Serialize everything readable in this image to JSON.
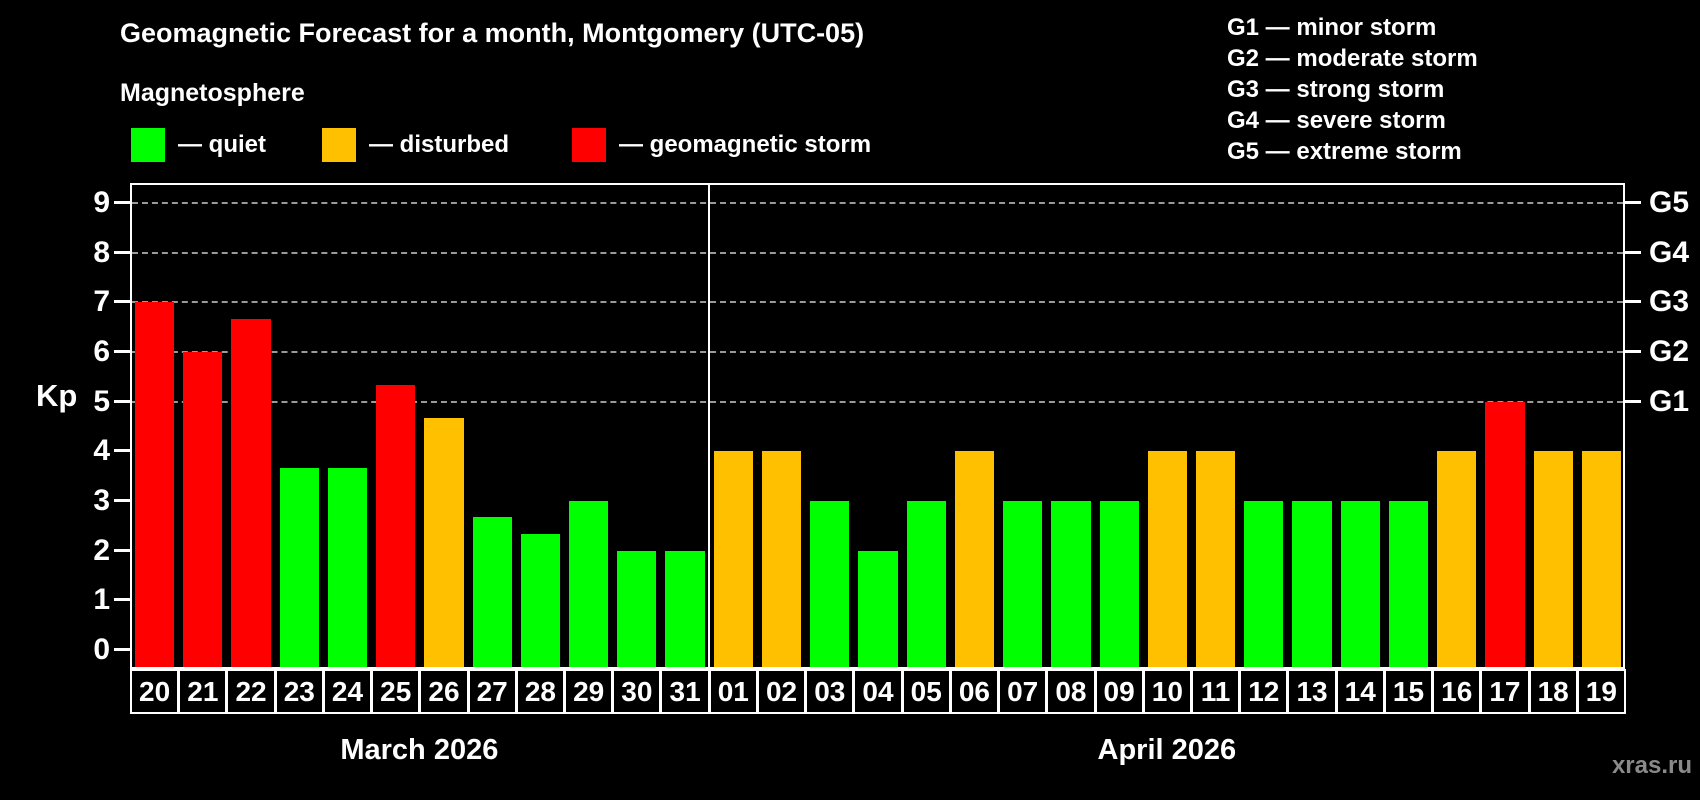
{
  "title": "Geomagnetic Forecast for a month, Montgomery (UTC-05)",
  "subtitle": "Magnetosphere",
  "watermark": "xras.ru",
  "legend": {
    "items": [
      {
        "label": "— quiet",
        "status": "quiet"
      },
      {
        "label": "— disturbed",
        "status": "disturbed"
      },
      {
        "label": "— geomagnetic storm",
        "status": "storm"
      }
    ]
  },
  "g_scale_legend": [
    "G1 — minor storm",
    "G2 — moderate storm",
    "G3 — strong storm",
    "G4 — severe storm",
    "G5 — extreme storm"
  ],
  "chart_data": {
    "type": "bar",
    "title": "Geomagnetic Forecast for a month, Montgomery (UTC-05)",
    "ylabel": "Kp",
    "ylim": [
      -0.4,
      9.4
    ],
    "y_ticks": [
      0,
      1,
      2,
      3,
      4,
      5,
      6,
      7,
      8,
      9
    ],
    "grid_levels": [
      5,
      6,
      7,
      8,
      9
    ],
    "grid": "dashed, levels G1-G5 only",
    "legend_position": "top-left",
    "right_axis": [
      {
        "kp": 5,
        "label": "G1"
      },
      {
        "kp": 6,
        "label": "G2"
      },
      {
        "kp": 7,
        "label": "G3"
      },
      {
        "kp": 8,
        "label": "G4"
      },
      {
        "kp": 9,
        "label": "G5"
      }
    ],
    "colors": {
      "quiet": "#00ff00",
      "disturbed": "#ffc000",
      "storm": "#ff0000"
    },
    "months": [
      {
        "label": "March 2026",
        "days": [
          {
            "day": "20",
            "kp": 7.0,
            "status": "storm"
          },
          {
            "day": "21",
            "kp": 6.0,
            "status": "storm"
          },
          {
            "day": "22",
            "kp": 6.67,
            "status": "storm"
          },
          {
            "day": "23",
            "kp": 3.67,
            "status": "quiet"
          },
          {
            "day": "24",
            "kp": 3.67,
            "status": "quiet"
          },
          {
            "day": "25",
            "kp": 5.33,
            "status": "storm"
          },
          {
            "day": "26",
            "kp": 4.67,
            "status": "disturbed"
          },
          {
            "day": "27",
            "kp": 2.67,
            "status": "quiet"
          },
          {
            "day": "28",
            "kp": 2.33,
            "status": "quiet"
          },
          {
            "day": "29",
            "kp": 3.0,
            "status": "quiet"
          },
          {
            "day": "30",
            "kp": 2.0,
            "status": "quiet"
          },
          {
            "day": "31",
            "kp": 2.0,
            "status": "quiet"
          }
        ]
      },
      {
        "label": "April 2026",
        "days": [
          {
            "day": "01",
            "kp": 4.0,
            "status": "disturbed"
          },
          {
            "day": "02",
            "kp": 4.0,
            "status": "disturbed"
          },
          {
            "day": "03",
            "kp": 3.0,
            "status": "quiet"
          },
          {
            "day": "04",
            "kp": 2.0,
            "status": "quiet"
          },
          {
            "day": "05",
            "kp": 3.0,
            "status": "quiet"
          },
          {
            "day": "06",
            "kp": 4.0,
            "status": "disturbed"
          },
          {
            "day": "07",
            "kp": 3.0,
            "status": "quiet"
          },
          {
            "day": "08",
            "kp": 3.0,
            "status": "quiet"
          },
          {
            "day": "09",
            "kp": 3.0,
            "status": "quiet"
          },
          {
            "day": "10",
            "kp": 4.0,
            "status": "disturbed"
          },
          {
            "day": "11",
            "kp": 4.0,
            "status": "disturbed"
          },
          {
            "day": "12",
            "kp": 3.0,
            "status": "quiet"
          },
          {
            "day": "13",
            "kp": 3.0,
            "status": "quiet"
          },
          {
            "day": "14",
            "kp": 3.0,
            "status": "quiet"
          },
          {
            "day": "15",
            "kp": 3.0,
            "status": "quiet"
          },
          {
            "day": "16",
            "kp": 4.0,
            "status": "disturbed"
          },
          {
            "day": "17",
            "kp": 5.0,
            "status": "storm"
          },
          {
            "day": "18",
            "kp": 4.0,
            "status": "disturbed"
          },
          {
            "day": "19",
            "kp": 4.0,
            "status": "disturbed"
          }
        ]
      }
    ]
  }
}
